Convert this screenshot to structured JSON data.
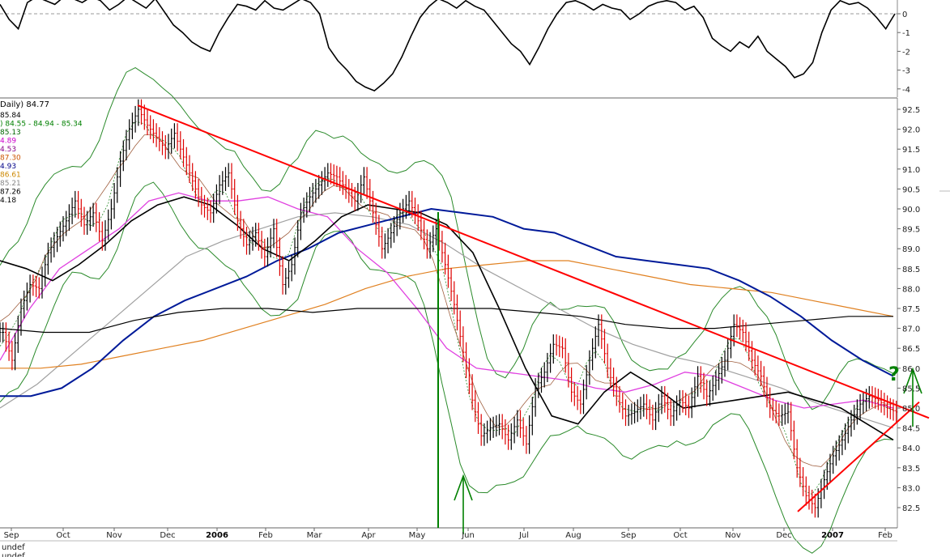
{
  "chart_data": [
    {
      "type": "line",
      "panel": "oscillator",
      "yticks": [
        "0",
        "-1",
        "-2",
        "-3",
        "-4"
      ],
      "ylim": [
        -4.2,
        0.7
      ],
      "zero_line": "dashed gray",
      "series": [
        {
          "color": "#000000",
          "values": [
            0.5,
            -0.3,
            -0.8,
            0.6,
            0.9,
            0.7,
            0.5,
            0.9,
            0.8,
            0.6,
            0.9,
            0.7,
            0.2,
            0.5,
            0.9,
            0.6,
            0.3,
            0.8,
            0.1,
            -0.6,
            -1.0,
            -1.5,
            -1.8,
            -2.0,
            -1.0,
            -0.2,
            0.5,
            0.4,
            0.2,
            0.7,
            0.3,
            0.2,
            0.5,
            0.8,
            0.6,
            0.0,
            -1.8,
            -2.5,
            -3.0,
            -3.6,
            -3.9,
            -4.1,
            -3.7,
            -3.2,
            -2.3,
            -1.2,
            -0.2,
            0.4,
            0.8,
            0.6,
            0.3,
            0.7,
            0.4,
            0.2,
            -0.4,
            -1.0,
            -1.6,
            -2.0,
            -2.7,
            -1.8,
            -0.8,
            0.0,
            0.6,
            0.7,
            0.5,
            0.2,
            0.5,
            0.3,
            0.2,
            -0.3,
            0.0,
            0.4,
            0.6,
            0.7,
            0.6,
            0.2,
            0.4,
            -0.2,
            -1.3,
            -1.7,
            -2.0,
            -1.5,
            -1.8,
            -1.2,
            -2.0,
            -2.4,
            -2.8,
            -3.4,
            -3.2,
            -2.6,
            -1.0,
            0.2,
            0.7,
            0.5,
            0.6,
            0.3,
            -0.2,
            -0.8,
            0.0
          ]
        }
      ]
    },
    {
      "type": "line",
      "panel": "price",
      "legend_title": "Daily) 84.77",
      "legend_values": [
        {
          "text": "85.84",
          "color": "#000000"
        },
        {
          "text": ") 84.55 - 84.94 - 85.34",
          "color": "#008000"
        },
        {
          "text": "85.13",
          "color": "#006600"
        },
        {
          "text": "4.89",
          "color": "#cc00cc"
        },
        {
          "text": "4.53",
          "color": "#880088"
        },
        {
          "text": "87.30",
          "color": "#cc5500"
        },
        {
          "text": "4.93",
          "color": "#000088"
        },
        {
          "text": "86.61",
          "color": "#cc8800"
        },
        {
          "text": "85.21",
          "color": "#888888"
        },
        {
          "text": "87.26",
          "color": "#000000"
        },
        {
          "text": "4.18",
          "color": "#000000"
        }
      ],
      "yticks": [
        "92.5",
        "92.0",
        "91.5",
        "91.0",
        "90.5",
        "90.0",
        "89.5",
        "89.0",
        "88.5",
        "88.0",
        "87.5",
        "87.0",
        "86.5",
        "86.0",
        "85.5",
        "85.0",
        "84.5",
        "84.0",
        "83.5",
        "83.0",
        "82.5"
      ],
      "ylim": [
        82.2,
        92.8
      ],
      "xticks": [
        {
          "label": "Sep",
          "bold": false
        },
        {
          "label": "Oct",
          "bold": false
        },
        {
          "label": "Nov",
          "bold": false
        },
        {
          "label": "Dec",
          "bold": false
        },
        {
          "label": "2006",
          "bold": true
        },
        {
          "label": "Feb",
          "bold": false
        },
        {
          "label": "Mar",
          "bold": false
        },
        {
          "label": "Apr",
          "bold": false
        },
        {
          "label": "May",
          "bold": false
        },
        {
          "label": "Jun",
          "bold": false
        },
        {
          "label": "Jul",
          "bold": false
        },
        {
          "label": "Aug",
          "bold": false
        },
        {
          "label": "Sep",
          "bold": false
        },
        {
          "label": "Oct",
          "bold": false
        },
        {
          "label": "Nov",
          "bold": false
        },
        {
          "label": "Dec",
          "bold": false
        },
        {
          "label": "2007",
          "bold": true
        },
        {
          "label": "Feb",
          "bold": false
        }
      ],
      "price_close": [
        86.9,
        86.2,
        87.5,
        88.1,
        88.0,
        88.9,
        89.3,
        89.7,
        90.2,
        89.6,
        89.9,
        89.2,
        90.0,
        91.2,
        92.0,
        92.5,
        92.1,
        91.8,
        91.5,
        91.9,
        91.3,
        90.7,
        90.1,
        89.9,
        90.6,
        90.9,
        89.7,
        89.1,
        89.4,
        88.8,
        89.5,
        88.1,
        88.6,
        89.9,
        90.3,
        90.6,
        90.9,
        90.8,
        90.5,
        90.2,
        90.8,
        89.9,
        89.0,
        89.4,
        89.9,
        90.2,
        89.7,
        89.0,
        89.5,
        88.6,
        87.6,
        86.4,
        85.2,
        84.3,
        84.5,
        84.6,
        84.2,
        84.7,
        84.1,
        85.5,
        85.9,
        86.6,
        86.5,
        85.4,
        85.1,
        86.2,
        87.1,
        86.0,
        85.3,
        84.8,
        84.9,
        85.1,
        84.7,
        85.3,
        84.8,
        85.2,
        85.0,
        85.8,
        85.3,
        85.7,
        86.2,
        87.1,
        86.9,
        86.2,
        85.8,
        85.0,
        84.8,
        84.9,
        83.5,
        82.8,
        82.5,
        83.2,
        83.8,
        84.2,
        84.7,
        85.1,
        85.3,
        85.2,
        85.0,
        84.9
      ],
      "ma_black_short": [
        88.7,
        88.5,
        88.2,
        88.6,
        89.1,
        89.7,
        90.1,
        90.3,
        90.1,
        89.6,
        89.0,
        88.7,
        89.2,
        89.8,
        90.1,
        90.0,
        89.9,
        89.6,
        88.9,
        87.5,
        86.0,
        84.8,
        84.6,
        85.4,
        85.9,
        85.5,
        85.0,
        85.1,
        85.2,
        85.3,
        85.4,
        85.2,
        85.0,
        84.6,
        84.2
      ],
      "ma_black_long": [
        87.0,
        86.9,
        86.9,
        87.2,
        87.4,
        87.5,
        87.5,
        87.4,
        87.5,
        87.5,
        87.5,
        87.5,
        87.4,
        87.3,
        87.1,
        87.0,
        87.0,
        87.1,
        87.2,
        87.3,
        87.3
      ],
      "ma_navy": [
        85.3,
        85.3,
        85.5,
        86.0,
        86.7,
        87.3,
        87.7,
        88.0,
        88.3,
        88.7,
        89.0,
        89.4,
        89.6,
        89.8,
        90.0,
        89.9,
        89.8,
        89.5,
        89.4,
        89.1,
        88.8,
        88.7,
        88.6,
        88.5,
        88.2,
        87.8,
        87.3,
        86.7,
        86.2,
        85.8
      ],
      "ma_orange": [
        86.0,
        86.0,
        86.1,
        86.3,
        86.5,
        86.7,
        87.0,
        87.3,
        87.6,
        88.0,
        88.3,
        88.5,
        88.6,
        88.7,
        88.7,
        88.5,
        88.3,
        88.1,
        88.0,
        87.9,
        87.7,
        87.5,
        87.3
      ],
      "ma_magenta": [
        86.2,
        87.5,
        88.5,
        89.0,
        89.5,
        90.2,
        90.4,
        90.2,
        90.2,
        90.3,
        90.0,
        89.8,
        89.0,
        88.4,
        87.5,
        86.5,
        86.0,
        85.9,
        85.8,
        85.7,
        85.5,
        85.4,
        85.6,
        85.9,
        85.8,
        85.5,
        85.2,
        85.0,
        85.1,
        85.2,
        85.0
      ],
      "ma_gray": [
        85.0,
        85.6,
        86.4,
        87.2,
        88.0,
        88.8,
        89.2,
        89.5,
        89.8,
        89.9,
        89.8,
        89.6,
        89.1,
        88.5,
        88.0,
        87.5,
        87.0,
        86.6,
        86.3,
        86.1,
        85.8,
        85.5,
        85.1,
        84.8,
        84.5
      ],
      "trendlines": [
        {
          "color": "#ff0000",
          "from": {
            "x_label": "Nov",
            "y": 92.6
          },
          "to": {
            "x_label": "Feb",
            "y": 85.0
          }
        },
        {
          "color": "#ff0000",
          "from": {
            "x_label": "Dec",
            "y": 82.4
          },
          "to": {
            "x_label": "Feb",
            "y": 85.0
          }
        }
      ],
      "vertical_line": {
        "color": "#008000",
        "x_label": "May"
      },
      "annotations": [
        {
          "type": "up-arrow",
          "color": "#008000",
          "near": "Jun"
        },
        {
          "type": "up-arrow",
          "color": "#008000",
          "near": "Feb"
        },
        {
          "type": "question-mark",
          "text": "?",
          "color": "#008000",
          "near": "Feb"
        }
      ],
      "bollinger_bands": {
        "color": "#008000",
        "upper_lower": true
      },
      "grid": false
    }
  ],
  "bottom_panel": {
    "lines": [
      "undef",
      "undef"
    ]
  }
}
